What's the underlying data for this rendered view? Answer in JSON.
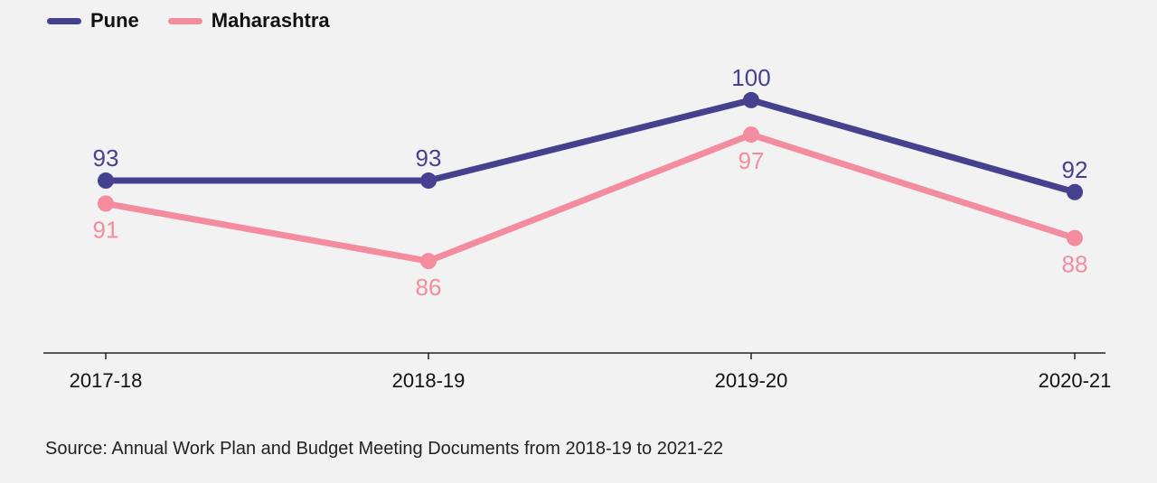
{
  "legend": [
    {
      "name": "Pune",
      "color": "#46418f"
    },
    {
      "name": "Maharashtra",
      "color": "#f48ca0"
    }
  ],
  "source": "Source: Annual Work Plan and Budget Meeting Documents from 2018-19 to 2021-22",
  "chart_data": {
    "type": "line",
    "categories": [
      "2017-18",
      "2018-19",
      "2019-20",
      "2020-21"
    ],
    "series": [
      {
        "name": "Pune",
        "color": "#46418f",
        "values": [
          93,
          93,
          100,
          92
        ],
        "label_position": "above"
      },
      {
        "name": "Maharashtra",
        "color": "#f48ca0",
        "values": [
          91,
          86,
          97,
          88
        ],
        "label_position": "below"
      }
    ],
    "xlabel": "",
    "ylabel": "",
    "ylim": [
      78,
      104
    ],
    "grid": false,
    "legend_position": "top-left"
  }
}
